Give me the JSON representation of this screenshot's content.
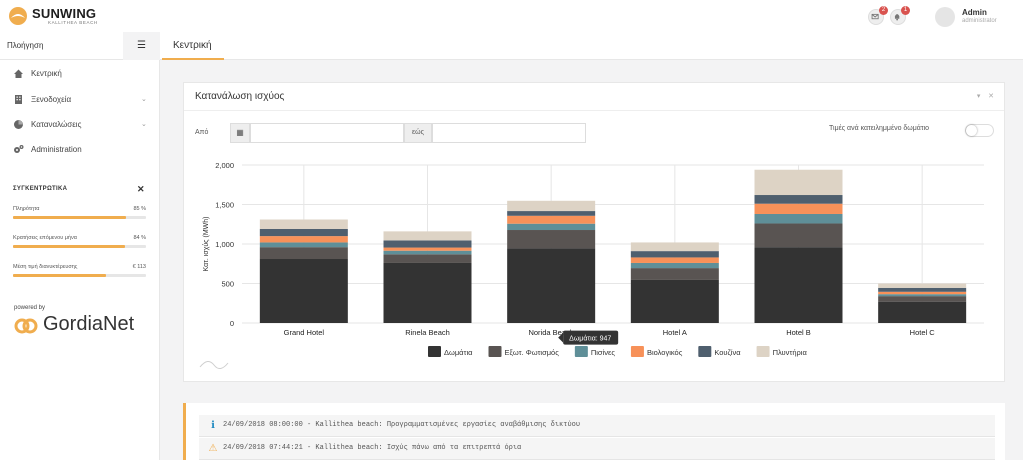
{
  "brand": {
    "name": "SUNWING",
    "sub": "KALLITHEA BEACH",
    "color": "#f0ad4e"
  },
  "header": {
    "mail_badge": "2",
    "bell_badge": "1",
    "user_name": "Admin",
    "user_role": "administrator"
  },
  "sidebar": {
    "title": "Πλοήγηση",
    "toggle_icon": "hamburger-icon",
    "items": [
      {
        "label": "Κεντρική",
        "icon": "home-icon"
      },
      {
        "label": "Ξενοδοχεία",
        "icon": "building-icon"
      },
      {
        "label": "Καταναλώσεις",
        "icon": "pie-chart-icon"
      },
      {
        "label": "Administration",
        "icon": "gears-icon"
      }
    ],
    "stats_title": "ΣΥΓΚΕΝΤΡΩΤΙΚΑ",
    "stats": [
      {
        "label": "Πληρότητα",
        "value": "85 %",
        "fraction": 0.85
      },
      {
        "label": "Κρατήσεις επόμενου μήνα",
        "value": "84 %",
        "fraction": 0.84
      },
      {
        "label": "Μέση τιμή διανυκτέρευσης",
        "value": "€ 113",
        "fraction": 0.7
      }
    ],
    "powered_by": "powered by",
    "partner": "GordiaNet"
  },
  "tab": {
    "label": "Κεντρική"
  },
  "panel": {
    "title": "Κατανάλωση ισχύος",
    "from_label": "Από",
    "to_label": "εώς",
    "from_value": "",
    "to_value": "",
    "toggle_label": "Τιμές ανά κατειλημμένο δωμάτιο"
  },
  "chart_data": {
    "type": "bar",
    "stacked": true,
    "ylabel": "Κατ. ισχύς (MWh)",
    "ylim": [
      0,
      2000
    ],
    "yticks": [
      "0",
      "500",
      "1,000",
      "1,500",
      "2,000"
    ],
    "categories": [
      "Grand Hotel",
      "Rinela Beach",
      "Norida Beach",
      "Hotel A",
      "Hotel B",
      "Hotel C"
    ],
    "series": [
      {
        "name": "Δωμάτια",
        "color": "#333333",
        "values": [
          810,
          760,
          947,
          545,
          960,
          270
        ]
      },
      {
        "name": "Εξωτ. Φωτισμός",
        "color": "#595452",
        "values": [
          150,
          110,
          230,
          150,
          300,
          70
        ]
      },
      {
        "name": "Πισίνες",
        "color": "#5f8f98",
        "values": [
          60,
          45,
          80,
          65,
          120,
          25
        ]
      },
      {
        "name": "Βιολογικός",
        "color": "#f79159",
        "values": [
          80,
          40,
          100,
          70,
          130,
          30
        ]
      },
      {
        "name": "Κουζίνα",
        "color": "#4f5f6e",
        "values": [
          90,
          90,
          60,
          80,
          110,
          50
        ]
      },
      {
        "name": "Πλυντήρια",
        "color": "#ddd3c5",
        "values": [
          120,
          115,
          130,
          110,
          320,
          55
        ]
      }
    ],
    "tooltip": {
      "category": "Norida Beach",
      "series": "Δωμάτια",
      "text": "Δωμάτια:  947"
    },
    "legend_position": "bottom",
    "grid": true
  },
  "log": [
    {
      "icon": "info-icon",
      "text": "24/09/2018 08:00:00 - Kallithea beach: Προγραμματισμένες εργασίες αναβάθμισης δικτύου"
    },
    {
      "icon": "warning-icon",
      "text": "24/09/2018 07:44:21 - Kallithea beach: Ισχύς πάνω από τα επιτρεπτά όρια"
    }
  ]
}
